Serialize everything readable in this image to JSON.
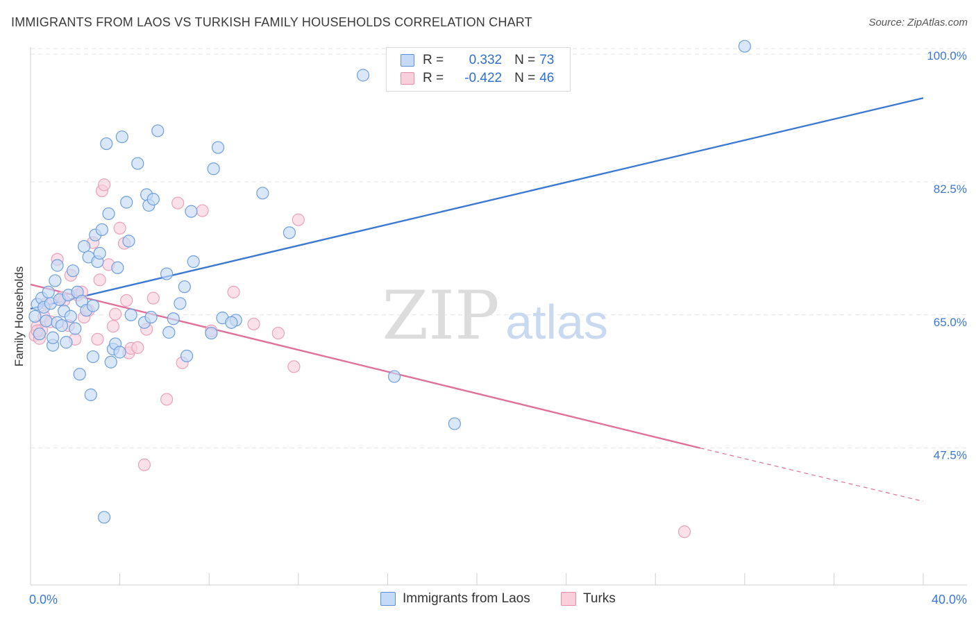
{
  "header": {
    "title": "IMMIGRANTS FROM LAOS VS TURKISH FAMILY HOUSEHOLDS CORRELATION CHART",
    "source": "Source: ZipAtlas.com"
  },
  "watermark": {
    "zip": "ZIP",
    "atlas": "atlas"
  },
  "stats": [
    {
      "r_label": "R =",
      "r_value": "0.332",
      "n_label": "N =",
      "n_value": "73",
      "color": "#5b8fd6",
      "fill": "#c5daf6"
    },
    {
      "r_label": "R =",
      "r_value": "-0.422",
      "n_label": "N =",
      "n_value": "46",
      "color": "#e58ea8",
      "fill": "#f8cfdb"
    }
  ],
  "legend": [
    {
      "label": "Immigrants from Laos",
      "color": "#5b8fd6",
      "fill": "#c5daf6"
    },
    {
      "label": "Turks",
      "color": "#e58ea8",
      "fill": "#f8cfdb"
    }
  ],
  "chart_data": {
    "type": "scatter",
    "title": "IMMIGRANTS FROM LAOS VS TURKISH FAMILY HOUSEHOLDS CORRELATION CHART",
    "xlabel": "",
    "ylabel": "Family Households",
    "xlim": [
      0,
      40
    ],
    "ylim": [
      29.5,
      100
    ],
    "x_tick_labels": [
      "0.0%",
      "40.0%"
    ],
    "y_ticks": [
      47.5,
      65.0,
      82.5,
      100.0
    ],
    "y_tick_labels": [
      "47.5%",
      "65.0%",
      "82.5%",
      "100.0%"
    ],
    "grid": true,
    "legend_position": "bottom-center",
    "series": [
      {
        "name": "Immigrants from Laos",
        "color": "#3a78d4",
        "point_fill": "#c5daf6",
        "point_stroke": "#6e9ede",
        "points": [
          [
            0.2,
            64.8
          ],
          [
            0.3,
            66.4
          ],
          [
            0.4,
            62.5
          ],
          [
            0.5,
            67.2
          ],
          [
            0.6,
            66.0
          ],
          [
            0.7,
            64.2
          ],
          [
            0.8,
            68.0
          ],
          [
            0.9,
            66.5
          ],
          [
            1.0,
            61.0
          ],
          [
            1.1,
            69.5
          ],
          [
            1.2,
            64.0
          ],
          [
            1.2,
            71.5
          ],
          [
            1.3,
            67.0
          ],
          [
            1.4,
            63.6
          ],
          [
            1.5,
            65.5
          ],
          [
            1.6,
            61.4
          ],
          [
            1.7,
            67.6
          ],
          [
            1.8,
            64.8
          ],
          [
            1.9,
            70.8
          ],
          [
            2.0,
            63.2
          ],
          [
            2.1,
            68.0
          ],
          [
            2.2,
            57.2
          ],
          [
            2.3,
            66.8
          ],
          [
            2.4,
            74.0
          ],
          [
            2.5,
            65.6
          ],
          [
            2.6,
            72.6
          ],
          [
            2.7,
            54.5
          ],
          [
            2.8,
            66.2
          ],
          [
            2.9,
            75.5
          ],
          [
            3.0,
            72.0
          ],
          [
            3.1,
            73.1
          ],
          [
            3.2,
            76.2
          ],
          [
            3.3,
            38.4
          ],
          [
            3.4,
            87.5
          ],
          [
            3.5,
            78.3
          ],
          [
            3.6,
            58.8
          ],
          [
            3.7,
            60.5
          ],
          [
            3.8,
            61.2
          ],
          [
            3.9,
            71.2
          ],
          [
            4.1,
            88.4
          ],
          [
            4.3,
            79.8
          ],
          [
            4.4,
            74.7
          ],
          [
            4.5,
            65.0
          ],
          [
            4.8,
            84.9
          ],
          [
            5.1,
            64.0
          ],
          [
            5.2,
            80.8
          ],
          [
            5.3,
            79.4
          ],
          [
            5.4,
            64.7
          ],
          [
            5.5,
            80.2
          ],
          [
            5.7,
            89.2
          ],
          [
            6.1,
            70.4
          ],
          [
            6.2,
            62.7
          ],
          [
            6.4,
            64.5
          ],
          [
            6.7,
            66.5
          ],
          [
            6.9,
            68.7
          ],
          [
            7.0,
            59.6
          ],
          [
            7.2,
            78.6
          ],
          [
            7.3,
            72.0
          ],
          [
            8.2,
            84.2
          ],
          [
            8.4,
            87.0
          ],
          [
            8.1,
            62.6
          ],
          [
            8.6,
            64.6
          ],
          [
            9.2,
            64.3
          ],
          [
            9.0,
            64.0
          ],
          [
            10.4,
            81.0
          ],
          [
            11.6,
            75.8
          ],
          [
            14.9,
            96.5
          ],
          [
            16.3,
            56.9
          ],
          [
            19.0,
            50.7
          ],
          [
            32.0,
            100.3
          ],
          [
            2.8,
            59.5
          ],
          [
            4.0,
            60.1
          ],
          [
            1.0,
            62.0
          ]
        ],
        "trend": {
          "x0": 0,
          "y0": 65.8,
          "x1": 40,
          "y1": 93.5
        }
      },
      {
        "name": "Turks",
        "color": "#e0709a",
        "point_fill": "#f8cfdb",
        "point_stroke": "#e9a2ba",
        "points": [
          [
            0.2,
            62.3
          ],
          [
            0.3,
            63.5
          ],
          [
            0.4,
            61.9
          ],
          [
            0.5,
            63.0
          ],
          [
            0.6,
            64.8
          ],
          [
            0.7,
            66.5
          ],
          [
            0.9,
            64.1
          ],
          [
            1.2,
            72.3
          ],
          [
            1.4,
            67.3
          ],
          [
            1.5,
            66.9
          ],
          [
            1.7,
            63.6
          ],
          [
            1.8,
            70.2
          ],
          [
            2.0,
            61.8
          ],
          [
            2.1,
            67.6
          ],
          [
            2.3,
            68.0
          ],
          [
            2.4,
            64.7
          ],
          [
            2.6,
            65.6
          ],
          [
            2.8,
            74.5
          ],
          [
            3.0,
            61.8
          ],
          [
            3.1,
            69.6
          ],
          [
            3.2,
            81.3
          ],
          [
            3.3,
            82.1
          ],
          [
            3.5,
            71.6
          ],
          [
            3.7,
            63.5
          ],
          [
            3.8,
            65.1
          ],
          [
            4.0,
            76.4
          ],
          [
            4.2,
            74.4
          ],
          [
            4.3,
            66.9
          ],
          [
            4.4,
            60.0
          ],
          [
            4.5,
            60.6
          ],
          [
            4.8,
            60.7
          ],
          [
            5.1,
            45.3
          ],
          [
            5.2,
            63.1
          ],
          [
            5.5,
            67.2
          ],
          [
            6.1,
            53.9
          ],
          [
            6.6,
            79.7
          ],
          [
            6.8,
            58.7
          ],
          [
            7.7,
            78.7
          ],
          [
            8.1,
            62.9
          ],
          [
            9.1,
            68.0
          ],
          [
            10.0,
            63.8
          ],
          [
            11.1,
            62.6
          ],
          [
            11.8,
            58.2
          ],
          [
            12.0,
            77.5
          ],
          [
            29.3,
            36.5
          ],
          [
            0.3,
            62.9
          ]
        ],
        "trend": {
          "x0": 0,
          "y0": 69.0,
          "x1": 30,
          "y1": 47.5
        },
        "trend_extension": {
          "x0": 30,
          "y0": 47.5,
          "x1": 40,
          "y1": 40.5
        }
      }
    ]
  }
}
